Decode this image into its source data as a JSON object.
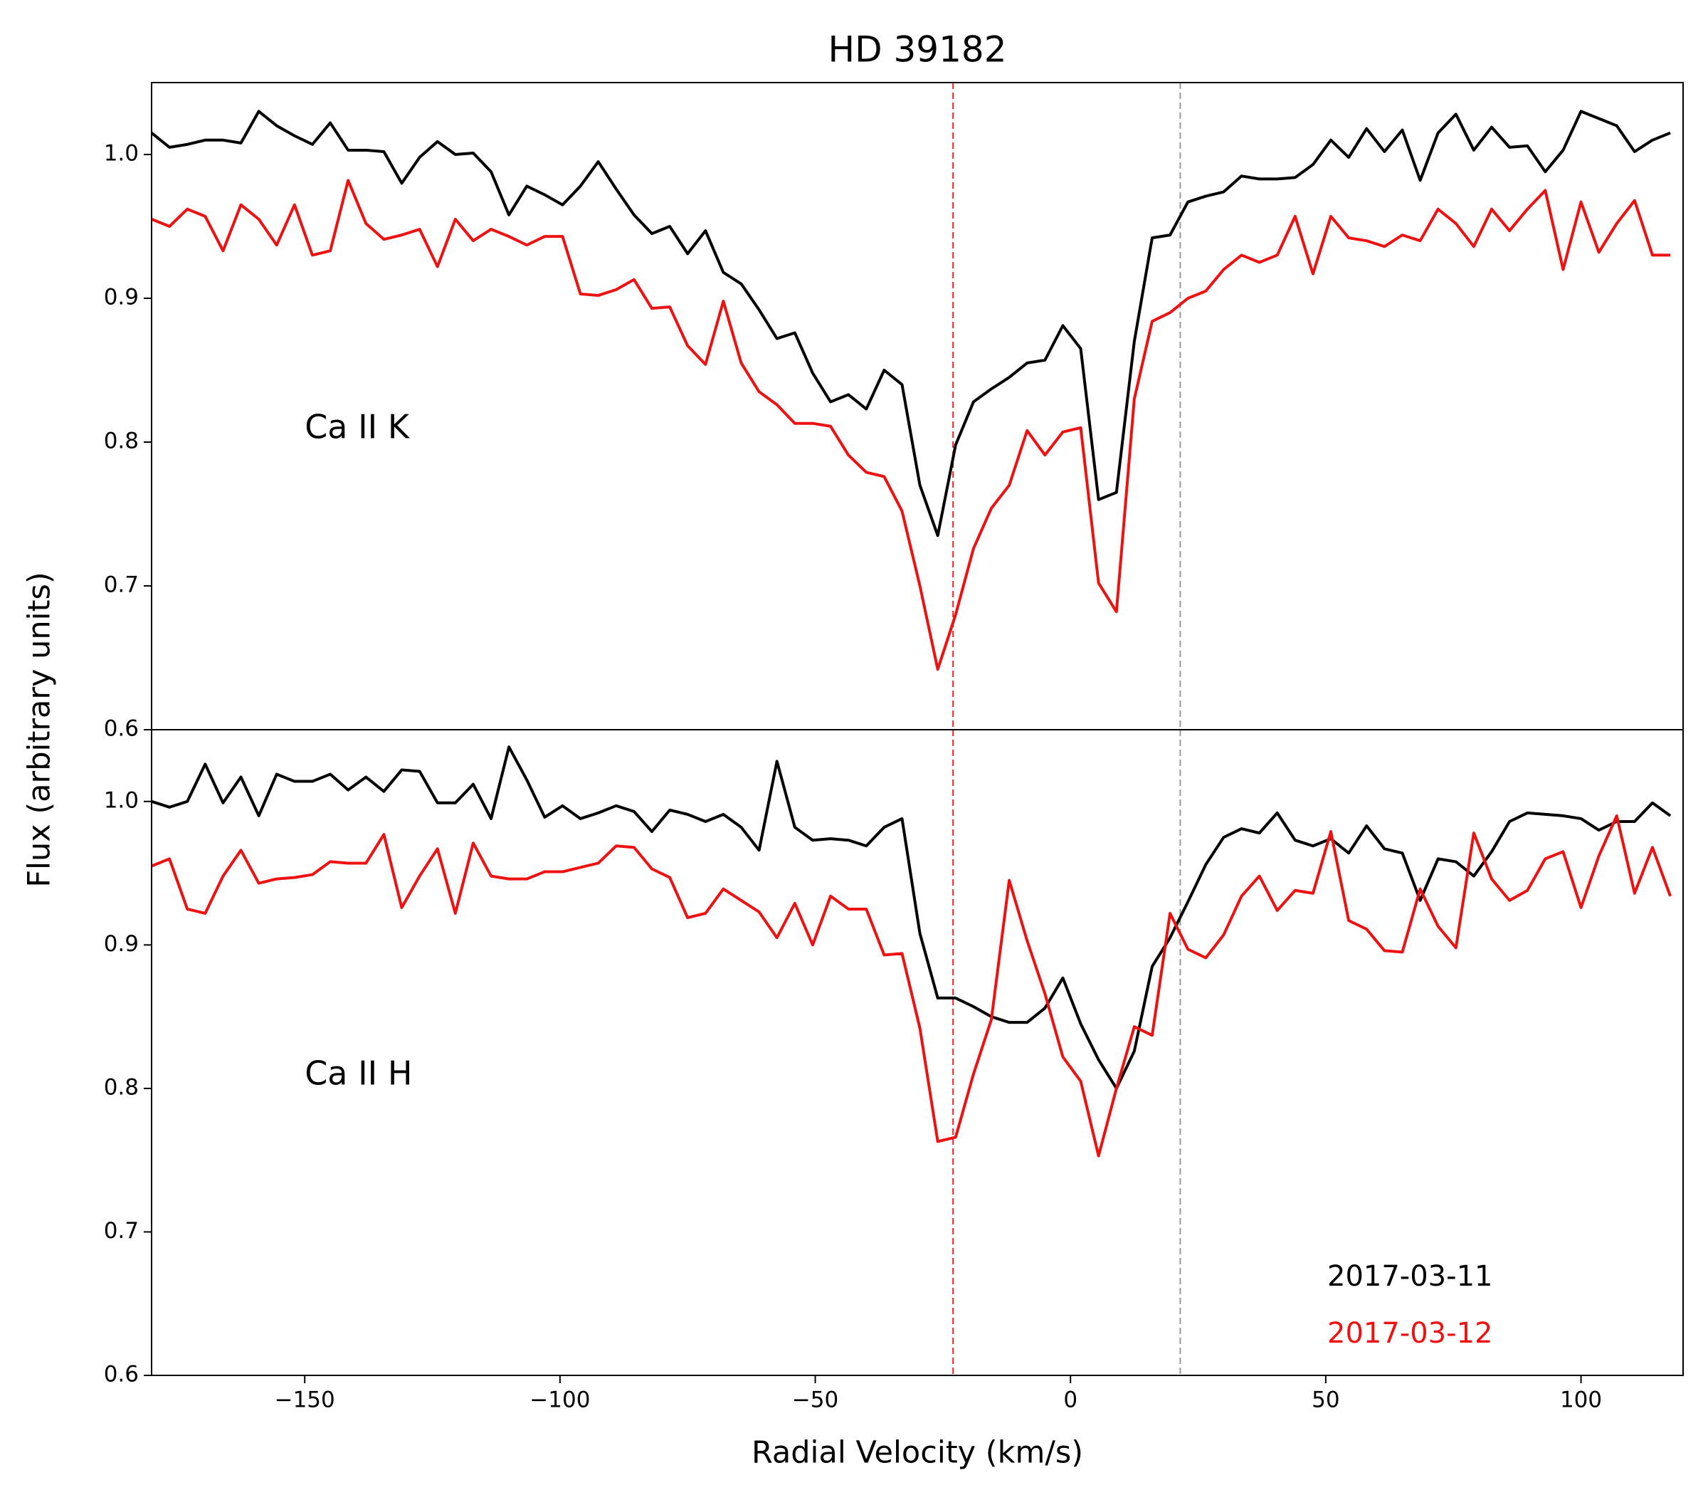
{
  "chart_data": [
    {
      "type": "line",
      "title": "HD 39182",
      "y_label": "Flux (arbitrary units)",
      "annotation": "Ca II K",
      "xlim": [
        -180,
        120
      ],
      "ylim": [
        0.6,
        1.05
      ],
      "yticks": [
        0.6,
        0.7,
        0.8,
        0.9,
        {
          "value": 1,
          "label": "1.0"
        }
      ],
      "vlines": [
        {
          "x": -23,
          "color": "#ee2222"
        },
        {
          "x": 21.5,
          "color": "#999999"
        }
      ],
      "x": [
        -180,
        -176.5,
        -173,
        -169.5,
        -166,
        -162.5,
        -159,
        -155.5,
        -152,
        -148.5,
        -145,
        -141.5,
        -138,
        -134.5,
        -131,
        -127.5,
        -124,
        -120.5,
        -117,
        -113.5,
        -110,
        -106.5,
        -103,
        -99.5,
        -96,
        -92.5,
        -89,
        -85.5,
        -82,
        -78.5,
        -75,
        -71.5,
        -68,
        -64.5,
        -61,
        -57.5,
        -54,
        -50.5,
        -47,
        -43.5,
        -40,
        -36.5,
        -33,
        -29.5,
        -26,
        -22.5,
        -19,
        -15.5,
        -12,
        -8.5,
        -5,
        -1.5,
        2,
        5.5,
        9,
        12.5,
        16,
        19.5,
        23,
        26.5,
        30,
        33.5,
        37,
        40.5,
        44,
        47.5,
        51,
        54.5,
        58,
        61.5,
        65,
        68.5,
        72,
        75.5,
        79,
        82.5,
        86,
        89.5,
        93,
        96.5,
        100,
        103.5,
        107,
        110.5,
        114,
        117.5
      ],
      "series": [
        {
          "color": "#000000",
          "values": [
            1.015,
            1.005,
            1.007,
            1.01,
            1.01,
            1.008,
            1.03,
            1.02,
            1.013,
            1.007,
            1.022,
            1.003,
            1.003,
            1.002,
            0.98,
            0.998,
            1.009,
            1.0,
            1.001,
            0.988,
            0.958,
            0.978,
            0.972,
            0.965,
            0.978,
            0.995,
            0.976,
            0.958,
            0.945,
            0.95,
            0.931,
            0.947,
            0.918,
            0.91,
            0.892,
            0.872,
            0.876,
            0.848,
            0.828,
            0.833,
            0.823,
            0.85,
            0.84,
            0.77,
            0.735,
            0.798,
            0.828,
            0.837,
            0.845,
            0.855,
            0.857,
            0.881,
            0.865,
            0.76,
            0.765,
            0.87,
            0.942,
            0.944,
            0.967,
            0.971,
            0.974,
            0.985,
            0.983,
            0.983,
            0.984,
            0.993,
            1.01,
            0.998,
            1.018,
            1.002,
            1.017,
            0.982,
            1.015,
            1.028,
            1.003,
            1.019,
            1.005,
            1.006,
            0.988,
            1.003,
            1.03,
            1.025,
            1.02,
            1.002,
            1.01,
            1.015
          ]
        },
        {
          "color": "#ee1111",
          "values": [
            0.955,
            0.95,
            0.962,
            0.957,
            0.933,
            0.965,
            0.955,
            0.937,
            0.965,
            0.93,
            0.933,
            0.982,
            0.952,
            0.941,
            0.944,
            0.948,
            0.922,
            0.955,
            0.94,
            0.948,
            0.943,
            0.937,
            0.943,
            0.943,
            0.903,
            0.902,
            0.906,
            0.913,
            0.893,
            0.894,
            0.867,
            0.854,
            0.898,
            0.855,
            0.835,
            0.826,
            0.813,
            0.813,
            0.811,
            0.791,
            0.779,
            0.776,
            0.752,
            0.7,
            0.642,
            0.68,
            0.726,
            0.754,
            0.77,
            0.808,
            0.791,
            0.807,
            0.81,
            0.702,
            0.682,
            0.83,
            0.884,
            0.89,
            0.9,
            0.905,
            0.92,
            0.93,
            0.925,
            0.93,
            0.957,
            0.917,
            0.957,
            0.942,
            0.94,
            0.936,
            0.944,
            0.94,
            0.962,
            0.952,
            0.936,
            0.962,
            0.947,
            0.962,
            0.975,
            0.92,
            0.967,
            0.932,
            0.952,
            0.968,
            0.93,
            0.93
          ]
        }
      ]
    },
    {
      "type": "line",
      "x_label": "Radial Velocity (km/s)",
      "annotation": "Ca II H",
      "legend": "lower right",
      "xlim": [
        -180,
        120
      ],
      "ylim": [
        0.6,
        1.05
      ],
      "xticks": [
        {
          "value": -150,
          "label": "−150"
        },
        {
          "value": -100,
          "label": "−100"
        },
        {
          "value": -50,
          "label": "−50"
        },
        0,
        50,
        100
      ],
      "yticks": [
        0.6,
        0.7,
        0.8,
        0.9,
        {
          "value": 1,
          "label": "1.0"
        }
      ],
      "vlines": [
        {
          "x": -23,
          "color": "#ee2222"
        },
        {
          "x": 21.5,
          "color": "#999999"
        }
      ],
      "x": [
        -180,
        -176.5,
        -173,
        -169.5,
        -166,
        -162.5,
        -159,
        -155.5,
        -152,
        -148.5,
        -145,
        -141.5,
        -138,
        -134.5,
        -131,
        -127.5,
        -124,
        -120.5,
        -117,
        -113.5,
        -110,
        -106.5,
        -103,
        -99.5,
        -96,
        -92.5,
        -89,
        -85.5,
        -82,
        -78.5,
        -75,
        -71.5,
        -68,
        -64.5,
        -61,
        -57.5,
        -54,
        -50.5,
        -47,
        -43.5,
        -40,
        -36.5,
        -33,
        -29.5,
        -26,
        -22.5,
        -19,
        -15.5,
        -12,
        -8.5,
        -5,
        -1.5,
        2,
        5.5,
        9,
        12.5,
        16,
        19.5,
        23,
        26.5,
        30,
        33.5,
        37,
        40.5,
        44,
        47.5,
        51,
        54.5,
        58,
        61.5,
        65,
        68.5,
        72,
        75.5,
        79,
        82.5,
        86,
        89.5,
        93,
        96.5,
        100,
        103.5,
        107,
        110.5,
        114,
        117.5
      ],
      "series": [
        {
          "name": "2017-03-11",
          "color": "#000000",
          "values": [
            1.0,
            0.996,
            1.0,
            1.026,
            0.999,
            1.017,
            0.99,
            1.019,
            1.014,
            1.014,
            1.019,
            1.008,
            1.017,
            1.007,
            1.022,
            1.021,
            0.999,
            0.999,
            1.012,
            0.988,
            1.038,
            1.015,
            0.989,
            0.997,
            0.988,
            0.992,
            0.997,
            0.993,
            0.979,
            0.994,
            0.991,
            0.986,
            0.991,
            0.982,
            0.966,
            1.028,
            0.982,
            0.973,
            0.974,
            0.973,
            0.969,
            0.982,
            0.988,
            0.908,
            0.863,
            0.863,
            0.857,
            0.85,
            0.846,
            0.846,
            0.856,
            0.877,
            0.845,
            0.82,
            0.8,
            0.826,
            0.885,
            0.905,
            0.93,
            0.956,
            0.975,
            0.981,
            0.978,
            0.992,
            0.973,
            0.969,
            0.974,
            0.964,
            0.983,
            0.967,
            0.964,
            0.931,
            0.96,
            0.958,
            0.948,
            0.965,
            0.986,
            0.992,
            0.991,
            0.99,
            0.988,
            0.98,
            0.986,
            0.986,
            0.999,
            0.99
          ]
        },
        {
          "name": "2017-03-12",
          "color": "#ee1111",
          "values": [
            0.955,
            0.96,
            0.925,
            0.922,
            0.948,
            0.966,
            0.943,
            0.946,
            0.947,
            0.949,
            0.958,
            0.957,
            0.957,
            0.977,
            0.926,
            0.948,
            0.967,
            0.922,
            0.971,
            0.948,
            0.946,
            0.946,
            0.951,
            0.951,
            0.954,
            0.957,
            0.969,
            0.968,
            0.953,
            0.947,
            0.919,
            0.922,
            0.939,
            0.931,
            0.923,
            0.905,
            0.929,
            0.9,
            0.934,
            0.925,
            0.925,
            0.893,
            0.894,
            0.842,
            0.763,
            0.766,
            0.81,
            0.848,
            0.945,
            0.903,
            0.866,
            0.822,
            0.805,
            0.753,
            0.8,
            0.843,
            0.837,
            0.922,
            0.897,
            0.891,
            0.907,
            0.934,
            0.948,
            0.924,
            0.938,
            0.936,
            0.979,
            0.917,
            0.911,
            0.896,
            0.895,
            0.939,
            0.913,
            0.898,
            0.978,
            0.946,
            0.931,
            0.938,
            0.96,
            0.965,
            0.926,
            0.962,
            0.99,
            0.936,
            0.968,
            0.934
          ]
        }
      ]
    }
  ]
}
